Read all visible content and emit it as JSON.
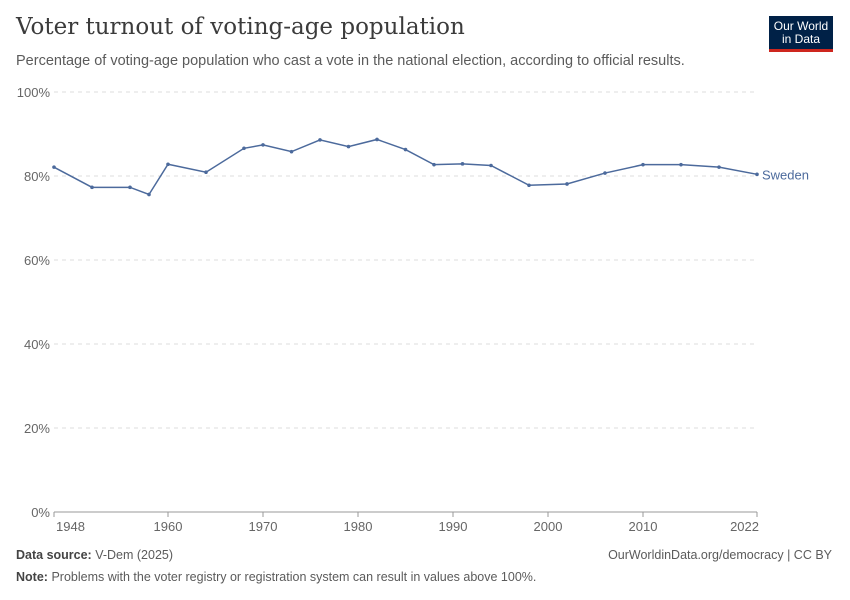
{
  "header": {
    "title": "Voter turnout of voting-age population",
    "subtitle": "Percentage of voting-age population who cast a vote in the national election, according to official results.",
    "logo": "Our World in Data"
  },
  "chart_data": {
    "type": "line",
    "title": "Voter turnout of voting-age population",
    "xlim": [
      1948,
      2022
    ],
    "ylim": [
      0,
      100
    ],
    "xticks": [
      "1948",
      "1960",
      "1970",
      "1980",
      "1990",
      "2000",
      "2010",
      "2022"
    ],
    "yticks": [
      "0%",
      "20%",
      "40%",
      "60%",
      "80%",
      "100%"
    ],
    "grid": "horizontal dashed",
    "legend": "inline-right",
    "color": "#4c6a9c",
    "series": [
      {
        "name": "Sweden",
        "x": [
          1948,
          1952,
          1956,
          1958,
          1960,
          1964,
          1968,
          1970,
          1973,
          1976,
          1979,
          1982,
          1985,
          1988,
          1991,
          1994,
          1998,
          2002,
          2006,
          2010,
          2014,
          2018,
          2022
        ],
        "values": [
          82.1,
          77.3,
          77.3,
          75.6,
          82.8,
          80.9,
          86.6,
          87.4,
          85.8,
          88.6,
          87.0,
          88.7,
          86.3,
          82.7,
          82.9,
          82.5,
          77.8,
          78.1,
          80.7,
          82.7,
          82.7,
          82.1,
          80.4
        ]
      }
    ]
  },
  "footer": {
    "source_label": "Data source:",
    "source": "V-Dem (2025)",
    "url": "OurWorldinData.org/democracy | CC BY",
    "note_label": "Note:",
    "note": "Problems with the voter registry or registration system can result in values above 100%."
  }
}
